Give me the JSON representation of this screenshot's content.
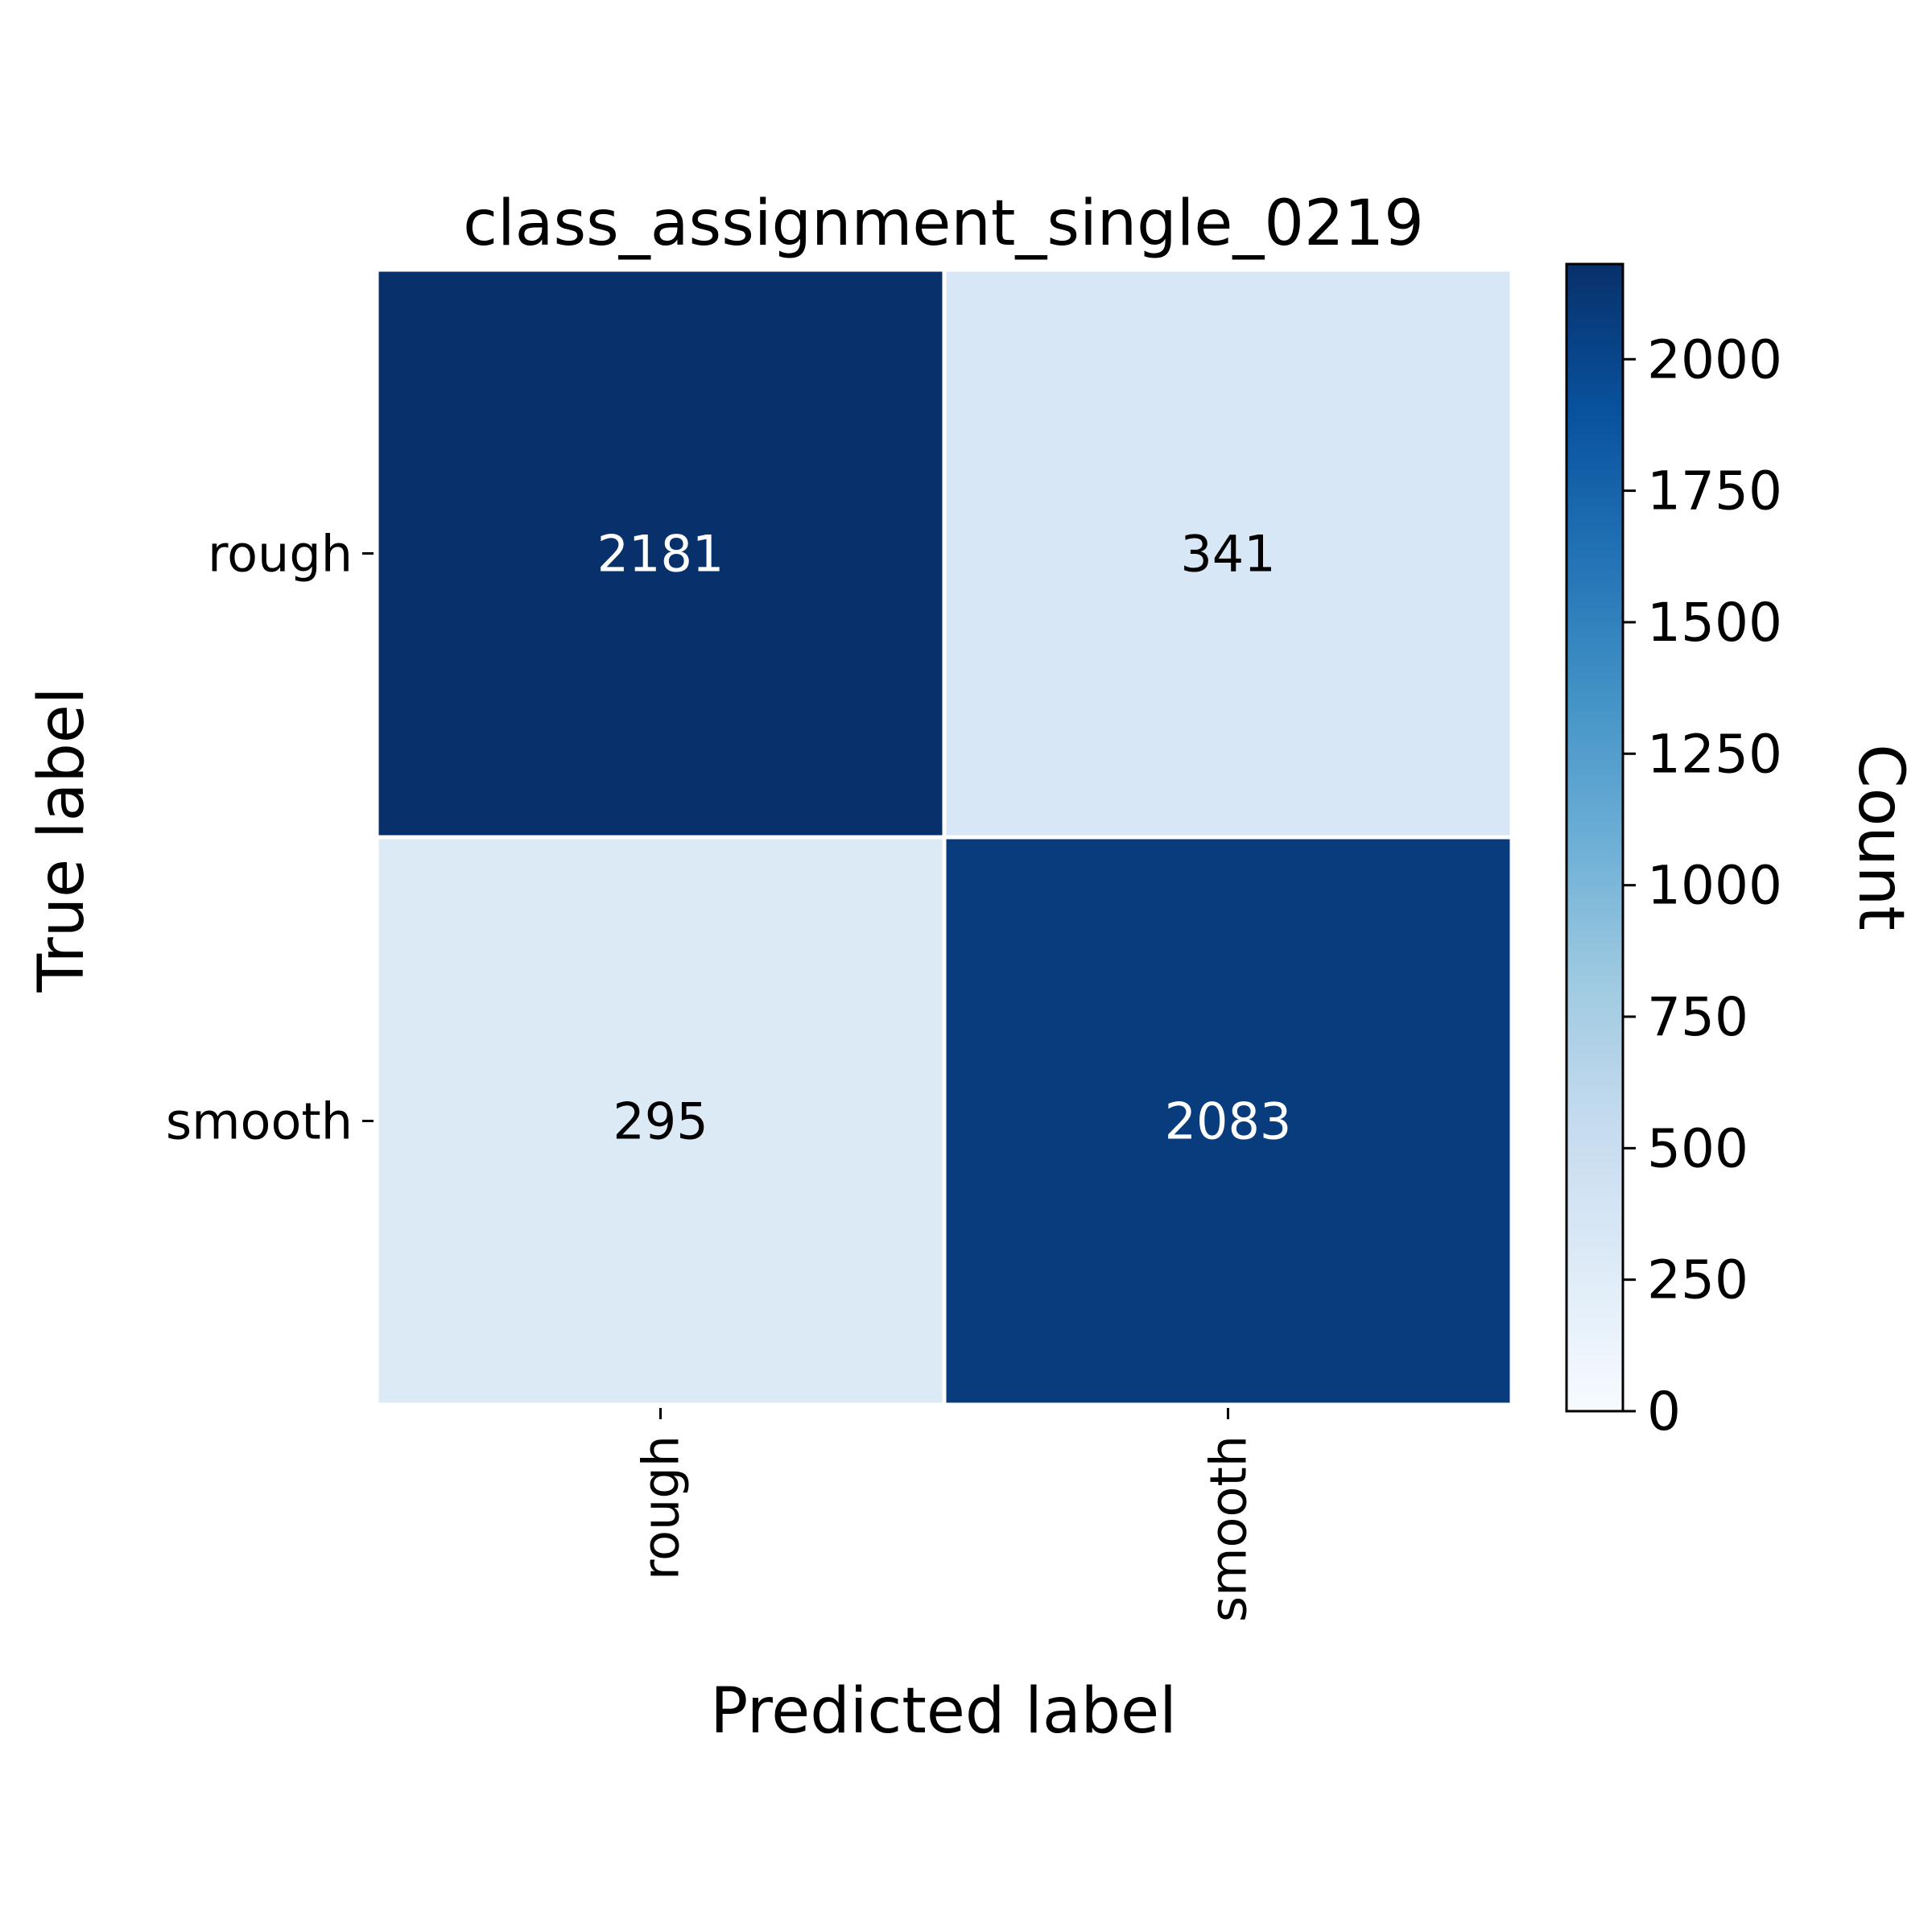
{
  "chart_data": {
    "type": "heatmap",
    "title": "class_assignment_single_0219",
    "xlabel": "Predicted label",
    "ylabel": "True label",
    "x_categories": [
      "rough",
      "smooth"
    ],
    "y_categories": [
      "rough",
      "smooth"
    ],
    "values": [
      [
        2181,
        341
      ],
      [
        295,
        2083
      ]
    ],
    "colorbar": {
      "label": "Count",
      "range": [
        0,
        2181
      ],
      "ticks": [
        0,
        250,
        500,
        750,
        1000,
        1250,
        1500,
        1750,
        2000
      ]
    },
    "colormap": "Blues",
    "colormap_stops": [
      "#f7fbff",
      "#deebf7",
      "#c6dbef",
      "#9ecae1",
      "#6baed6",
      "#4292c6",
      "#2171b5",
      "#08519c",
      "#08306b"
    ],
    "text_colors": {
      "dark_cell": "#ffffff",
      "light_cell": "#000000"
    },
    "grid": false,
    "legend": "colorbar right"
  }
}
